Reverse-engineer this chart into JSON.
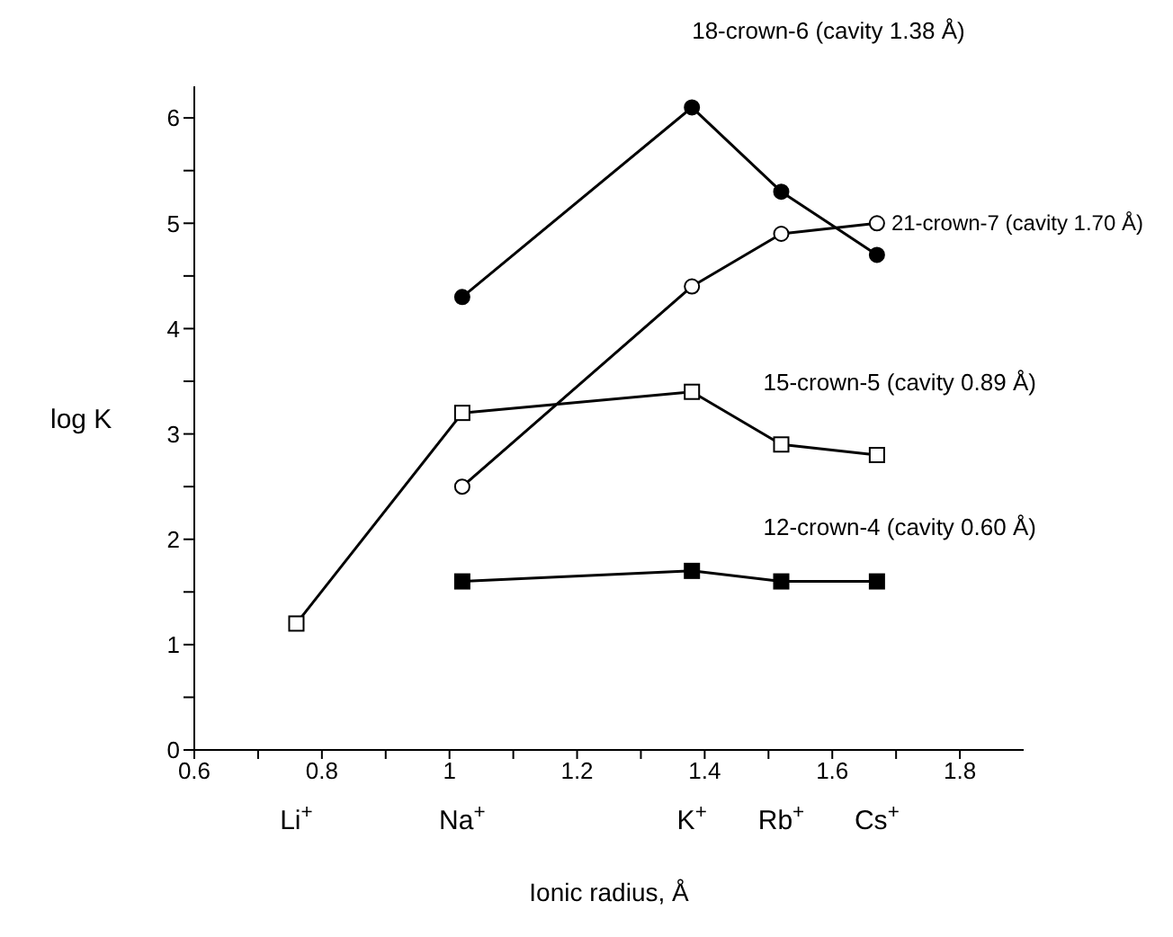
{
  "chart_data": {
    "type": "line",
    "xlabel": "Ionic radius, Å",
    "ylabel": "log K",
    "xlim": [
      0.6,
      1.9
    ],
    "xticks": [
      0.6,
      {
        "value": 0.7,
        "label": null
      },
      0.8,
      {
        "value": 0.9,
        "label": null
      },
      1.0,
      {
        "value": 1.1,
        "label": null
      },
      1.2,
      {
        "value": 1.3,
        "label": null
      },
      1.4,
      {
        "value": 1.5,
        "label": null
      },
      1.6,
      {
        "value": 1.7,
        "label": null
      },
      1.8
    ],
    "ylim": [
      0,
      6.3
    ],
    "yticks": [
      0,
      {
        "value": 0.5,
        "label": null
      },
      1,
      {
        "value": 1.5,
        "label": null
      },
      2,
      {
        "value": 2.5,
        "label": null
      },
      3,
      {
        "value": 3.5,
        "label": null
      },
      4,
      {
        "value": 4.5,
        "label": null
      },
      5,
      {
        "value": 5.5,
        "label": null
      },
      6
    ],
    "annotations": [
      "Li$^{+}$",
      "Na$^{+}$",
      "K$^{+}$",
      "Rb$^{+}$",
      "Cs$^{+}$"
    ],
    "line_style": "solid",
    "series": [
      {
        "name": "12-crown-4 (cavity 0.60 Å)",
        "color": "#000000",
        "marker": "square",
        "colors": [
          "#000000",
          "#000000",
          "#000000",
          "#000000"
        ],
        "x": [
          1.02,
          1.38,
          1.52,
          1.67
        ],
        "values": [
          1.6,
          1.7,
          1.6,
          1.6
        ]
      },
      {
        "name": "15-crown-5 (cavity 0.89 Å)",
        "color": "#000000",
        "marker": "square",
        "colors": [
          "#ffffff",
          "#ffffff",
          "#ffffff",
          "#ffffff",
          "#ffffff"
        ],
        "x": [
          0.76,
          1.02,
          1.38,
          1.52,
          1.67
        ],
        "values": [
          1.2,
          3.2,
          3.4,
          2.9,
          2.8
        ]
      },
      {
        "name": "18-crown-6 (cavity 1.38 Å)",
        "color": "#000000",
        "marker": "circle",
        "colors": [
          "#000000",
          "#000000",
          "#000000",
          "#000000"
        ],
        "x": [
          1.02,
          1.38,
          1.52,
          1.67
        ],
        "values": [
          4.3,
          6.1,
          5.3,
          4.7
        ]
      },
      {
        "name": "21-crown-7 (cavity 1.70 Å)",
        "color": "#000000",
        "marker": "circle",
        "colors": [
          "#ffffff",
          "#ffffff",
          "#ffffff",
          "#ffffff"
        ],
        "x": [
          1.02,
          1.38,
          1.52,
          1.67
        ],
        "values": [
          2.5,
          4.4,
          4.9,
          5.0
        ]
      }
    ]
  }
}
